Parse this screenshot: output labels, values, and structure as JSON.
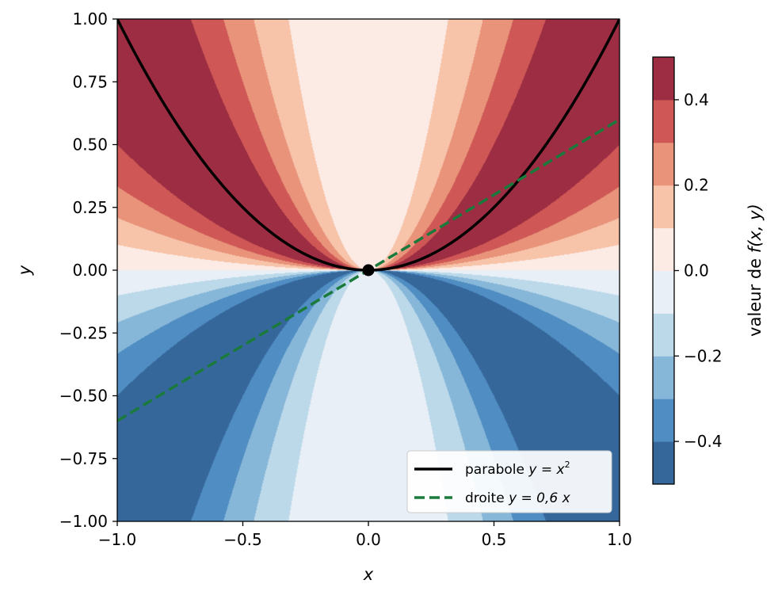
{
  "chart_data": {
    "type": "heatmap",
    "title": "",
    "xlabel": "x",
    "ylabel": "y",
    "xlim": [
      -1,
      1
    ],
    "ylim": [
      -1,
      1
    ],
    "x_ticks": [
      "−1.0",
      "−0.5",
      "0.0",
      "0.5",
      "1.0"
    ],
    "x_tick_values": [
      -1,
      -0.5,
      0,
      0.5,
      1
    ],
    "y_ticks": [
      "1.00",
      "0.75",
      "0.50",
      "0.25",
      "0.00",
      "−0.25",
      "−0.50",
      "−0.75",
      "−1.00"
    ],
    "y_tick_values": [
      1,
      0.75,
      0.5,
      0.25,
      0,
      -0.25,
      -0.5,
      -0.75,
      -1
    ],
    "function_note": "filled contours of f(x,y) = x^2 y / (x^4 + y^2), clipped to [-0.5, 0.5]",
    "levels": [
      -0.5,
      -0.4,
      -0.3,
      -0.2,
      -0.1,
      0,
      0.1,
      0.2,
      0.3,
      0.4,
      0.5
    ],
    "level_colors": [
      "#36679b",
      "#4f8dc3",
      "#86b7d8",
      "#bcd9ea",
      "#e8eff6",
      "#fbebe4",
      "#f7c3a9",
      "#e8937a",
      "#cf5856",
      "#9c2d42"
    ],
    "colorbar": {
      "label_prefix": "valeur de ",
      "label_math": "f(x, y)",
      "ticks": [
        "0.4",
        "0.2",
        "0.0",
        "−0.2",
        "−0.4"
      ],
      "tick_values": [
        0.4,
        0.2,
        0,
        -0.2,
        -0.4
      ],
      "range": [
        -0.5,
        0.5
      ]
    },
    "series": [
      {
        "name": "parabole y = x²",
        "label_prefix": "parabole ",
        "label_math": "y = x",
        "label_sup": "2",
        "style": "solid",
        "color": "#000000",
        "formula": "y = x^2"
      },
      {
        "name": "droite y = 0,6 x",
        "label_prefix": "droite ",
        "label_math": "y = 0,6 x",
        "style": "dashed",
        "color": "#1a7a3c",
        "formula": "y = 0.6 x"
      }
    ],
    "points": [
      {
        "x": 0,
        "y": 0,
        "color": "#000000"
      }
    ],
    "legend": {
      "position": "bottom-right"
    }
  }
}
